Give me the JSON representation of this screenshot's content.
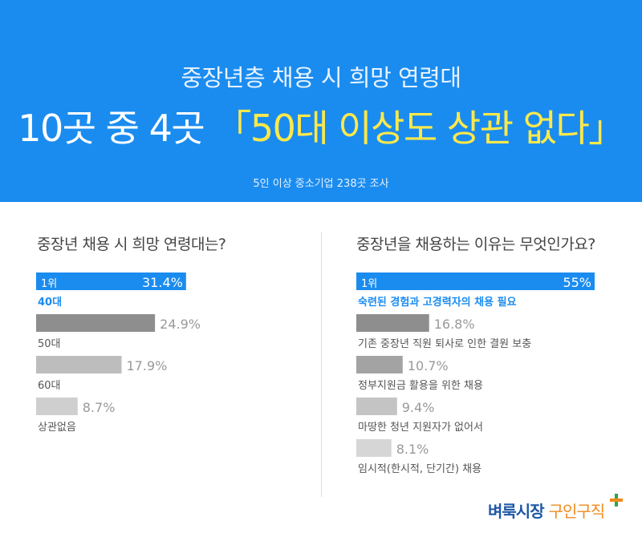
{
  "header": {
    "subtitle": "중장년층 채용 시 희망 연령대",
    "headline_lead": "10곳 중 4곳 ",
    "headline_highlight": "「50대 이상도 상관 없다」",
    "source": "5인 이상 중소기업 238곳 조사"
  },
  "left": {
    "question": "중장년 채용 시 희망 연령대는?"
  },
  "right": {
    "question": "중장년을 채용하는 이유는 무엇인가요?"
  },
  "chart_data": [
    {
      "type": "bar",
      "title": "중장년 채용 시 희망 연령대는?",
      "categories": [
        "40대",
        "50대",
        "60대",
        "상관없음"
      ],
      "values": [
        31.4,
        24.9,
        17.9,
        8.7
      ],
      "value_labels": [
        "31.4%",
        "24.9%",
        "17.9%",
        "8.7%"
      ],
      "rank_label": "1위",
      "orientation": "horizontal",
      "colors": [
        "#1b8cef",
        "#8e8e8e",
        "#bdbdbd",
        "#cfcfcf"
      ]
    },
    {
      "type": "bar",
      "title": "중장년을 채용하는 이유는 무엇인가요?",
      "categories": [
        "숙련된 경험과 고경력자의 채용 필요",
        "기존 중장년 직원 퇴사로 인한 결원 보충",
        "정부지원금 활용을 위한 채용",
        "마땅한 청년 지원자가 없어서",
        "임시적(한시적, 단기간) 채용"
      ],
      "values": [
        55,
        16.8,
        10.7,
        9.4,
        8.1
      ],
      "value_labels": [
        "55%",
        "16.8%",
        "10.7%",
        "9.4%",
        "8.1%"
      ],
      "rank_label": "1위",
      "orientation": "horizontal",
      "colors": [
        "#1b8cef",
        "#8e8e8e",
        "#a3a3a3",
        "#c4c4c4",
        "#d6d6d6"
      ]
    }
  ],
  "brand": {
    "part1": "벼룩시장 ",
    "part2": "구인구직"
  },
  "colors": {
    "accent": "#1b8cef",
    "highlight": "#ffe94a",
    "brand_blue": "#1e57a6",
    "brand_orange": "#f08a1c"
  }
}
